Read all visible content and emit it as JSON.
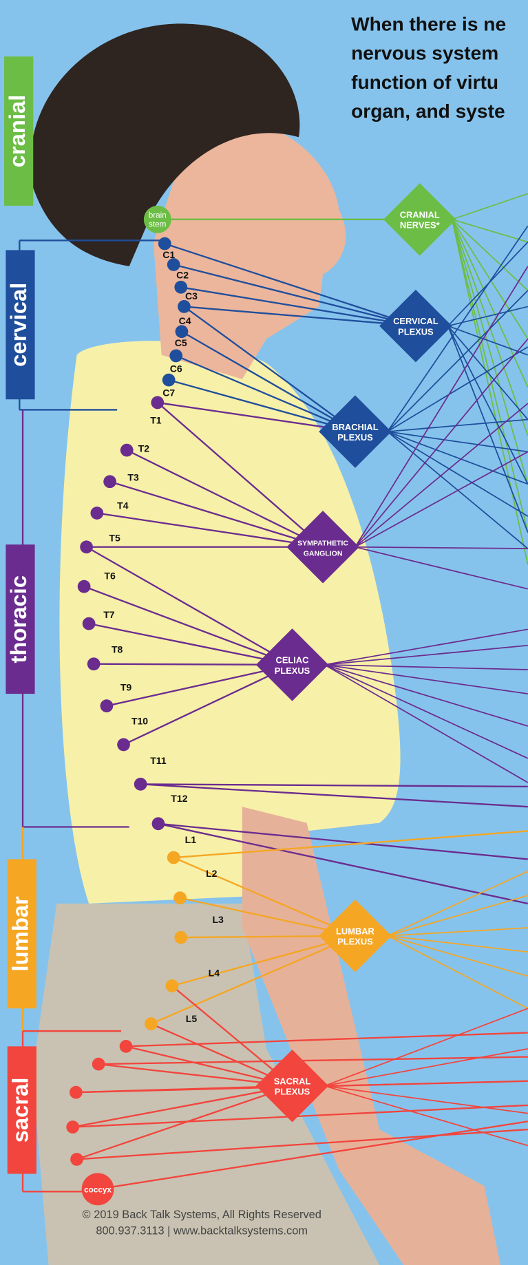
{
  "header": {
    "lines": [
      "When there is ne",
      "nervous system",
      "function of virtu",
      "organ, and syste"
    ]
  },
  "regions": [
    {
      "label": "cranial"
    },
    {
      "label": "cervical"
    },
    {
      "label": "thoracic"
    },
    {
      "label": "lumbar"
    },
    {
      "label": "sacral"
    }
  ],
  "brain_stem": {
    "lines": [
      "brain",
      "stem"
    ]
  },
  "vertebrae": [
    "C1",
    "C2",
    "C3",
    "C4",
    "C5",
    "C6",
    "C7",
    "T1",
    "T2",
    "T3",
    "T4",
    "T5",
    "T6",
    "T7",
    "T8",
    "T9",
    "T10",
    "T11",
    "T12",
    "L1",
    "L2",
    "L3",
    "L4",
    "L5"
  ],
  "coccyx": {
    "label": "coccyx"
  },
  "plexuses": [
    {
      "lines": [
        "CRANIAL",
        "NERVES*"
      ]
    },
    {
      "lines": [
        "CERVICAL",
        "PLEXUS"
      ]
    },
    {
      "lines": [
        "BRACHIAL",
        "PLEXUS"
      ]
    },
    {
      "lines": [
        "SYMPATHETIC",
        "GANGLION"
      ]
    },
    {
      "lines": [
        "CELIAC",
        "PLEXUS"
      ]
    },
    {
      "lines": [
        "LUMBAR",
        "PLEXUS"
      ]
    },
    {
      "lines": [
        "SACRAL",
        "PLEXUS"
      ]
    }
  ],
  "footer": {
    "lines": [
      "© 2019 Back Talk Systems, All Rights Reserved",
      "800.937.3113  |  www.backtalksystems.com"
    ]
  }
}
